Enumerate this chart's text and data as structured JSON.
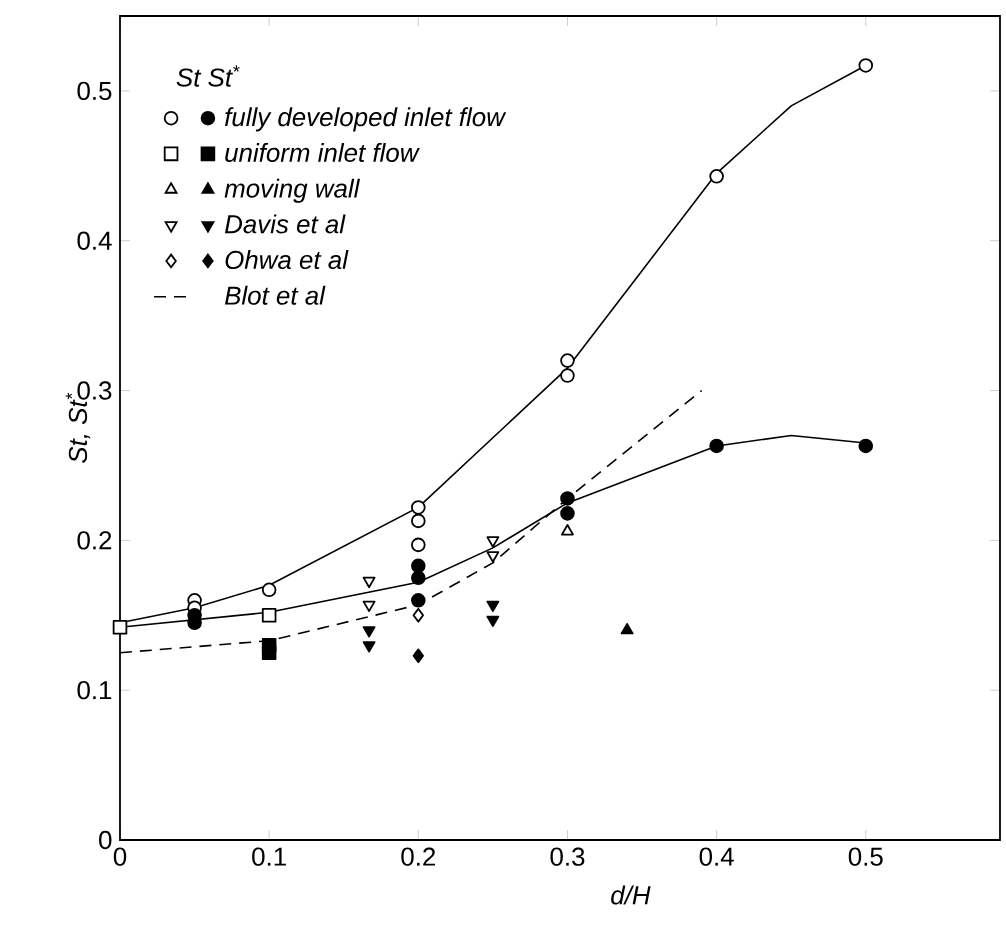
{
  "chart_data": {
    "type": "scatter",
    "xlabel": "d/H",
    "ylabel": "St, St$^{*}$",
    "legend_title": "St  St$^{*}$",
    "xlim": [
      0,
      0.59
    ],
    "ylim": [
      0,
      0.55
    ],
    "xticks": [
      0,
      0.1,
      0.2,
      0.3,
      0.4,
      0.5
    ],
    "yticks": [
      0,
      0.1,
      0.2,
      0.3,
      0.4,
      0.5
    ],
    "grid": false,
    "legend": "top left",
    "series": [
      {
        "marker": "circle",
        "color": "#ffffff",
        "x": [
          0.05,
          0.05,
          0.1,
          0.2,
          0.2,
          0.2,
          0.3,
          0.3,
          0.4,
          0.5
        ],
        "values": [
          0.16,
          0.155,
          0.167,
          0.222,
          0.213,
          0.197,
          0.32,
          0.31,
          0.443,
          0.517
        ]
      },
      {
        "name": "fully developed inlet flow",
        "marker": "circle",
        "color": "#000000",
        "x": [
          0.05,
          0.05,
          0.2,
          0.2,
          0.2,
          0.3,
          0.3,
          0.4,
          0.5
        ],
        "values": [
          0.15,
          0.145,
          0.183,
          0.175,
          0.16,
          0.228,
          0.218,
          0.263,
          0.263
        ]
      },
      {
        "marker": "square",
        "color": "#ffffff",
        "x": [
          0,
          0.1
        ],
        "values": [
          0.142,
          0.15
        ]
      },
      {
        "name": "uniform inlet flow",
        "marker": "square",
        "color": "#000000",
        "x": [
          0.1,
          0.1
        ],
        "values": [
          0.13,
          0.125
        ]
      },
      {
        "marker": "triangle",
        "color": "#ffffff",
        "x": [
          0.3
        ],
        "values": [
          0.206
        ]
      },
      {
        "name": "moving wall",
        "marker": "triangle",
        "color": "#000000",
        "x": [
          0.34
        ],
        "values": [
          0.14
        ]
      },
      {
        "marker": "triangle down",
        "color": "#ffffff",
        "x": [
          0.167,
          0.167,
          0.25,
          0.25
        ],
        "values": [
          0.173,
          0.157,
          0.2,
          0.19
        ]
      },
      {
        "name": "Davis et al",
        "marker": "triangle down",
        "color": "#000000",
        "x": [
          0.167,
          0.167,
          0.25,
          0.25
        ],
        "values": [
          0.14,
          0.13,
          0.157,
          0.147
        ]
      },
      {
        "marker": "diamond",
        "color": "#ffffff",
        "x": [
          0.2
        ],
        "values": [
          0.15
        ]
      },
      {
        "name": "Ohwa et al",
        "marker": "diamond",
        "color": "#000000",
        "x": [
          0.2
        ],
        "values": [
          0.123
        ]
      },
      {
        "type": "line",
        "name": "Blot et al",
        "line_style": "dashed",
        "color": "#000000",
        "x": [
          0,
          0.1,
          0.2,
          0.25,
          0.3,
          0.39
        ],
        "values": [
          0.125,
          0.133,
          0.157,
          0.185,
          0.228,
          0.3
        ]
      },
      {
        "type": "line",
        "line_style": "solid",
        "color": "#000000",
        "x": [
          0,
          0.05,
          0.1,
          0.2,
          0.3,
          0.35,
          0.4,
          0.45,
          0.5
        ],
        "values": [
          0.145,
          0.155,
          0.17,
          0.222,
          0.315,
          0.38,
          0.445,
          0.49,
          0.517
        ]
      },
      {
        "type": "line",
        "line_style": "solid",
        "color": "#000000",
        "x": [
          0,
          0.1,
          0.2,
          0.25,
          0.3,
          0.4,
          0.45,
          0.5
        ],
        "values": [
          0.142,
          0.152,
          0.172,
          0.195,
          0.225,
          0.263,
          0.27,
          0.265
        ]
      }
    ]
  }
}
